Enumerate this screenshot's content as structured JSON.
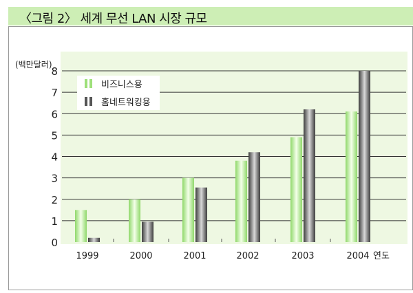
{
  "header": {
    "title": "〈그림 2〉 세계 무선 LAN 시장 규모"
  },
  "chart_data": {
    "type": "bar",
    "title": "〈그림 2〉 세계 무선 LAN 시장 규모",
    "ylabel": "(백만달러)",
    "xlabel": "연도",
    "categories": [
      "1999",
      "2000",
      "2001",
      "2002",
      "2003",
      "2004"
    ],
    "series": [
      {
        "name": "비즈니스용",
        "values": [
          1.5,
          2.0,
          3.0,
          3.8,
          4.9,
          6.1
        ],
        "color": "#9ee07a"
      },
      {
        "name": "홈네트워킹용",
        "values": [
          0.2,
          0.95,
          2.55,
          4.2,
          6.2,
          8.0
        ],
        "color": "#666666"
      }
    ],
    "ylim": [
      0,
      8
    ],
    "yticks": [
      0,
      1,
      2,
      3,
      4,
      5,
      6,
      7,
      8
    ],
    "grid": true,
    "legend": "top-left",
    "background": "#eef8e2"
  }
}
